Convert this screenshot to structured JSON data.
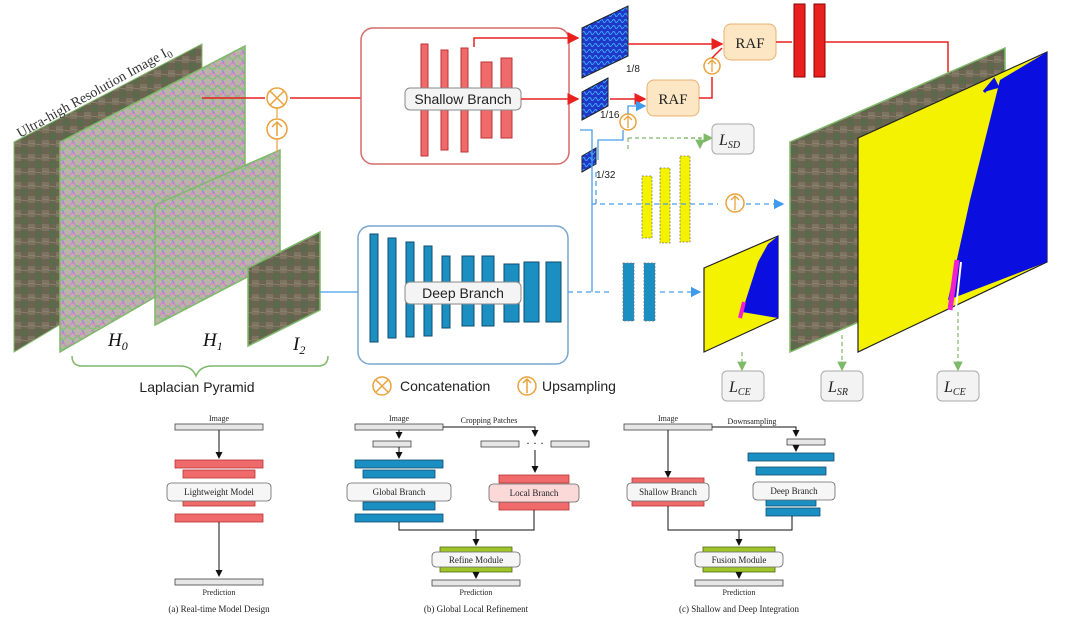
{
  "top": {
    "input_label": "Ultra-high Resolution Image I",
    "input_sub": "0",
    "pyramid_label": "Laplacian Pyramid",
    "h0": "H",
    "h0_sub": "0",
    "h1": "H",
    "h1_sub": "1",
    "i2": "I",
    "i2_sub": "2",
    "shallow_branch": "Shallow Branch",
    "deep_branch": "Deep Branch",
    "raf_1": "RAF",
    "raf_2": "RAF",
    "scale_1_8": "1/8",
    "scale_1_16": "1/16",
    "scale_1_32": "1/32",
    "loss_sd": "L",
    "loss_sd_sub": "SD",
    "loss_ce_1": "L",
    "loss_ce_1_sub": "CE",
    "loss_sr": "L",
    "loss_sr_sub": "SR",
    "loss_ce_2": "L",
    "loss_ce_2_sub": "CE",
    "legend_concat": "Concatenation",
    "legend_upsample": "Upsampling"
  },
  "panel_a": {
    "image_label": "Image",
    "model_label": "Lightweight Model",
    "prediction_label": "Prediction",
    "caption": "(a) Real-time Model Design"
  },
  "panel_b": {
    "image_label": "Image",
    "cropping_label": "Cropping Patches",
    "dots": "· · ·",
    "global_label": "Global Branch",
    "local_label": "Local Branch",
    "refine_label": "Refine Module",
    "prediction_label": "Prediction",
    "caption": "(b) Global Local Refinement"
  },
  "panel_c": {
    "image_label": "Image",
    "downsampling_label": "Downsampling",
    "shallow_label": "Shallow Branch",
    "deep_label": "Deep Branch",
    "fusion_label": "Fusion Module",
    "prediction_label": "Prediction",
    "caption": "(c) Shallow and Deep Integration"
  },
  "colors": {
    "red": "#e8211f",
    "salmon": "#ef6b6b",
    "blue": "#1b8ec2",
    "yellow": "#f5f200",
    "navy": "#0a0fe0",
    "green": "#7fb96a",
    "orange": "#e9a23b",
    "lime": "#9fc52a",
    "dash_blue": "#4a9fe6"
  }
}
